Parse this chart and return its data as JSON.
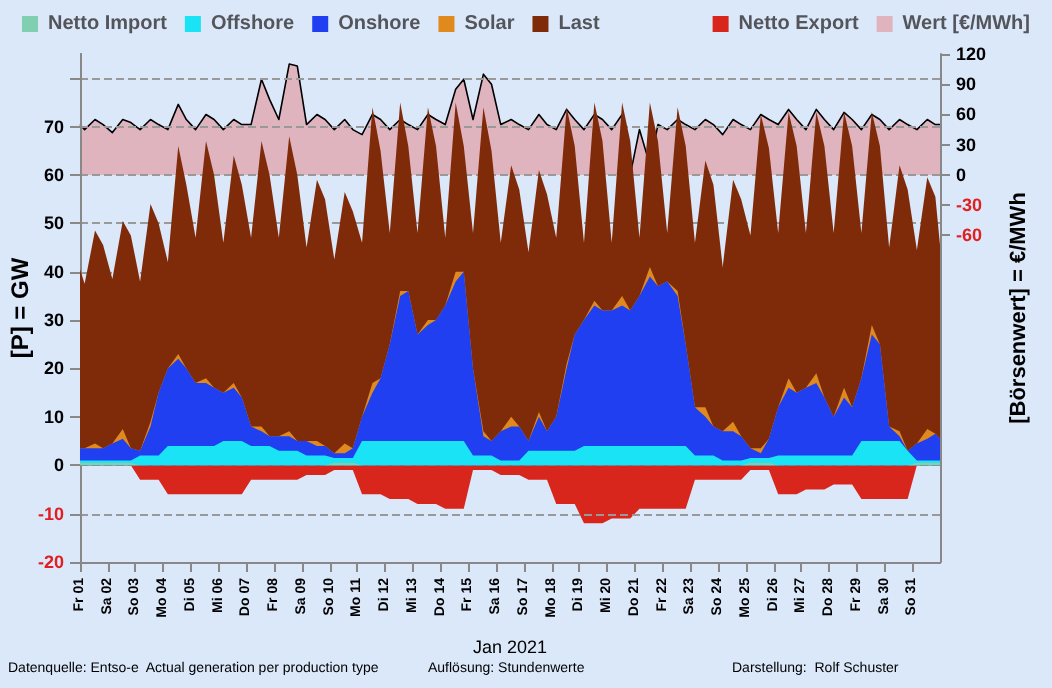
{
  "chart_data": [
    {
      "type": "area",
      "stacked": true,
      "xlabel": "Jan 2021",
      "ylabel": "[P] = GW",
      "legend": "top left",
      "grid": "y",
      "tick_labels": "x",
      "annotations": [
        "Datenquelle: Entso-e  Actual generation per production type",
        "Auflösung: Stundenwerte",
        "Darstellung:  Rolf Schuster"
      ],
      "xlim": [
        "2021-01-01",
        "2021-02-01"
      ],
      "xticks": [
        {
          "value": "2021-01-01",
          "label": "Fr 01"
        },
        {
          "value": "2021-01-02",
          "label": "Sa 02"
        },
        {
          "value": "2021-01-03",
          "label": "So 03"
        },
        {
          "value": "2021-01-04",
          "label": "Mo 04"
        },
        {
          "value": "2021-01-05",
          "label": "Di 05"
        },
        {
          "value": "2021-01-06",
          "label": "Mi 06"
        },
        {
          "value": "2021-01-07",
          "label": "Do 07"
        },
        {
          "value": "2021-01-08",
          "label": "Fr 08"
        },
        {
          "value": "2021-01-09",
          "label": "Sa 09"
        },
        {
          "value": "2021-01-10",
          "label": "So 10"
        },
        {
          "value": "2021-01-11",
          "label": "Mo 11"
        },
        {
          "value": "2021-01-12",
          "label": "Di 12"
        },
        {
          "value": "2021-01-13",
          "label": "Mi 13"
        },
        {
          "value": "2021-01-14",
          "label": "Do 14"
        },
        {
          "value": "2021-01-15",
          "label": "Fr 15"
        },
        {
          "value": "2021-01-16",
          "label": "Sa 16"
        },
        {
          "value": "2021-01-17",
          "label": "So 17"
        },
        {
          "value": "2021-01-18",
          "label": "Mo 18"
        },
        {
          "value": "2021-01-19",
          "label": "Di 19"
        },
        {
          "value": "2021-01-20",
          "label": "Mi 20"
        },
        {
          "value": "2021-01-21",
          "label": "Do 21"
        },
        {
          "value": "2021-01-22",
          "label": "Fr 22"
        },
        {
          "value": "2021-01-23",
          "label": "Sa 23"
        },
        {
          "value": "2021-01-24",
          "label": "So 24"
        },
        {
          "value": "2021-01-25",
          "label": "Mo 25"
        },
        {
          "value": "2021-01-26",
          "label": "Di 26"
        },
        {
          "value": "2021-01-27",
          "label": "Mi 27"
        },
        {
          "value": "2021-01-28",
          "label": "Do 28"
        },
        {
          "value": "2021-01-29",
          "label": "Fr 29"
        },
        {
          "value": "2021-01-30",
          "label": "Sa 30"
        },
        {
          "value": "2021-01-31",
          "label": "So 31"
        }
      ],
      "ylim": [
        -20,
        85
      ],
      "yticks": [
        -20,
        -10,
        0,
        10,
        20,
        30,
        40,
        50,
        60,
        70,
        {
          "value": 80,
          "label": null
        }
      ],
      "x": [
        "2021-01-01T00:00",
        "2021-01-01T04:00",
        "2021-01-01T13:00",
        "2021-01-01T20:00",
        "2021-01-02T04:00",
        "2021-01-02T13:00",
        "2021-01-02T20:00",
        "2021-01-03T04:00",
        "2021-01-03T13:00",
        "2021-01-03T20:00",
        "2021-01-04T04:00",
        "2021-01-04T13:00",
        "2021-01-04T20:00",
        "2021-01-05T04:00",
        "2021-01-05T13:00",
        "2021-01-05T20:00",
        "2021-01-06T04:00",
        "2021-01-06T13:00",
        "2021-01-06T20:00",
        "2021-01-07T04:00",
        "2021-01-07T13:00",
        "2021-01-07T20:00",
        "2021-01-08T04:00",
        "2021-01-08T13:00",
        "2021-01-08T20:00",
        "2021-01-09T04:00",
        "2021-01-09T13:00",
        "2021-01-09T20:00",
        "2021-01-10T04:00",
        "2021-01-10T13:00",
        "2021-01-10T20:00",
        "2021-01-11T04:00",
        "2021-01-11T13:00",
        "2021-01-11T20:00",
        "2021-01-12T04:00",
        "2021-01-12T13:00",
        "2021-01-12T20:00",
        "2021-01-13T04:00",
        "2021-01-13T13:00",
        "2021-01-13T20:00",
        "2021-01-14T04:00",
        "2021-01-14T13:00",
        "2021-01-14T20:00",
        "2021-01-15T04:00",
        "2021-01-15T13:00",
        "2021-01-15T20:00",
        "2021-01-16T04:00",
        "2021-01-16T13:00",
        "2021-01-16T20:00",
        "2021-01-17T04:00",
        "2021-01-17T13:00",
        "2021-01-17T20:00",
        "2021-01-18T04:00",
        "2021-01-18T13:00",
        "2021-01-18T20:00",
        "2021-01-19T04:00",
        "2021-01-19T13:00",
        "2021-01-19T20:00",
        "2021-01-20T04:00",
        "2021-01-20T13:00",
        "2021-01-20T20:00",
        "2021-01-21T04:00",
        "2021-01-21T13:00",
        "2021-01-21T20:00",
        "2021-01-22T04:00",
        "2021-01-22T13:00",
        "2021-01-22T20:00",
        "2021-01-23T04:00",
        "2021-01-23T13:00",
        "2021-01-23T20:00",
        "2021-01-24T04:00",
        "2021-01-24T13:00",
        "2021-01-24T20:00",
        "2021-01-25T04:00",
        "2021-01-25T13:00",
        "2021-01-25T20:00",
        "2021-01-26T04:00",
        "2021-01-26T13:00",
        "2021-01-26T20:00",
        "2021-01-27T04:00",
        "2021-01-27T13:00",
        "2021-01-27T20:00",
        "2021-01-28T04:00",
        "2021-01-28T13:00",
        "2021-01-28T20:00",
        "2021-01-29T04:00",
        "2021-01-29T13:00",
        "2021-01-29T20:00",
        "2021-01-30T04:00",
        "2021-01-30T13:00",
        "2021-01-30T20:00",
        "2021-01-31T04:00",
        "2021-01-31T13:00",
        "2021-01-31T20:00",
        "2021-02-01T00:00"
      ],
      "series": [
        {
          "name": "Netto Import",
          "color": "#7fcfb0",
          "values": [
            0.5,
            0.5,
            0.5,
            0.5,
            0.5,
            0.5,
            0.5,
            0,
            0,
            0,
            0,
            0,
            0,
            0,
            0,
            0,
            0,
            0,
            0,
            0,
            0,
            0,
            0,
            0,
            0,
            0,
            0,
            0,
            0.5,
            0.5,
            0.5,
            0,
            0,
            0,
            0,
            0,
            0,
            0,
            0,
            0,
            0,
            0,
            0,
            0,
            0,
            0,
            0,
            0,
            0,
            0,
            0,
            0,
            0,
            0,
            0,
            0,
            0,
            0,
            0,
            0,
            0,
            0,
            0,
            0,
            0,
            0,
            0,
            0,
            0,
            0,
            0,
            0,
            0,
            0.5,
            0.5,
            0.5,
            0,
            0,
            0,
            0,
            0,
            0,
            0,
            0,
            0,
            0,
            0,
            0,
            0,
            0,
            0,
            0.5,
            0.5,
            0.5,
            0.5
          ]
        },
        {
          "name": "Offshore",
          "color": "#19e3f5",
          "values": [
            0.5,
            0.5,
            0.5,
            0.5,
            0.5,
            0.5,
            0.5,
            2,
            2,
            2,
            4,
            4,
            4,
            4,
            4,
            4,
            5,
            5,
            5,
            4,
            4,
            4,
            3,
            3,
            3,
            2,
            2,
            2,
            1,
            1,
            1,
            5,
            5,
            5,
            5,
            5,
            5,
            5,
            5,
            5,
            5,
            5,
            5,
            2,
            2,
            2,
            1,
            1,
            1,
            3,
            3,
            3,
            3,
            3,
            3,
            4,
            4,
            4,
            4,
            4,
            4,
            4,
            4,
            4,
            4,
            4,
            4,
            2,
            2,
            2,
            1,
            1,
            1,
            1,
            1,
            1,
            2,
            2,
            2,
            2,
            2,
            2,
            2,
            2,
            2,
            5,
            5,
            5,
            5,
            5,
            3,
            0.5,
            0.5,
            0.5,
            0.5
          ]
        },
        {
          "name": "Onshore",
          "color": "#1f3ff0",
          "values": [
            2.5,
            2.5,
            2.5,
            2.5,
            3.5,
            4.5,
            2.5,
            1,
            6,
            13,
            16,
            18,
            16,
            13,
            13,
            12,
            10,
            11,
            9,
            4,
            3,
            2,
            3,
            3,
            2,
            3,
            2,
            2,
            1,
            1,
            2,
            5,
            10,
            13,
            20,
            30,
            31,
            22,
            24,
            25,
            28,
            33,
            35,
            18,
            4,
            3,
            6,
            7,
            7,
            2,
            7,
            4,
            7,
            17,
            24,
            26,
            29,
            28,
            28,
            29,
            28,
            31,
            35,
            33,
            34,
            31,
            21,
            10,
            8,
            6,
            6,
            6,
            5,
            2,
            1,
            4,
            10,
            14,
            13,
            14,
            15,
            12,
            8,
            12,
            10,
            13,
            22,
            20,
            3,
            1,
            0,
            3.5,
            4.5,
            5.5,
            4.5
          ]
        },
        {
          "name": "Solar",
          "color": "#e08a1e",
          "values": [
            0,
            0,
            1,
            0,
            0,
            2,
            0,
            0,
            1,
            0,
            0,
            1,
            0,
            0,
            1,
            0,
            0,
            1,
            0,
            0,
            1,
            0,
            0,
            1,
            0,
            0,
            1,
            0,
            0,
            2,
            0,
            0,
            2,
            0,
            0,
            1,
            0,
            0,
            1,
            0,
            0,
            2,
            0,
            0,
            1,
            0,
            0,
            2,
            0,
            0,
            1,
            0,
            0,
            1,
            0,
            0,
            1,
            0,
            0,
            2,
            0,
            0,
            2,
            0,
            0,
            1,
            0,
            0,
            2,
            0,
            0,
            2,
            0,
            0,
            1,
            0,
            0,
            2,
            0,
            0,
            2,
            0,
            0,
            2,
            0,
            0,
            2,
            0,
            0,
            1,
            0,
            0,
            2,
            0,
            0
          ]
        },
        {
          "name": "Last",
          "color": "#7f2b0a",
          "values": [
            37,
            34,
            44,
            42,
            34,
            43,
            44,
            35,
            45,
            35,
            22,
            43,
            38,
            30,
            49,
            44,
            31,
            47,
            44,
            39,
            59,
            54,
            41,
            61,
            55,
            40,
            54,
            51,
            40,
            52,
            49,
            36,
            57,
            47,
            23,
            39,
            30,
            21,
            44,
            36,
            14,
            35,
            26,
            28,
            67,
            60,
            39,
            52,
            49,
            39,
            50,
            49,
            37,
            53,
            39,
            16,
            41,
            35,
            14,
            40,
            35,
            12,
            34,
            30,
            10,
            38,
            41,
            34,
            51,
            50,
            34,
            50,
            49,
            44,
            69,
            60,
            36,
            55,
            51,
            32,
            54,
            52,
            38,
            57,
            54,
            30,
            44,
            41,
            37,
            55,
            54,
            40,
            52,
            49,
            40
          ]
        }
      ]
    },
    {
      "type": "area",
      "legend": "top right",
      "tick_labels": "y",
      "y2label": "[Börsenwert] = €/MWh",
      "xlim": [
        "2021-01-01",
        "2021-02-01"
      ],
      "ylim": [
        -20,
        85
      ],
      "yticks": [
        -20,
        -10,
        0,
        10,
        20,
        30,
        40,
        50,
        60,
        70,
        {
          "value": 80,
          "label": null
        }
      ],
      "y2lim": [
        -384,
        120
      ],
      "y2ticks": [
        -60,
        -30,
        0,
        30,
        60,
        90,
        120
      ],
      "x": [
        "2021-01-01T00:00",
        "2021-01-01T04:00",
        "2021-01-01T13:00",
        "2021-01-01T20:00",
        "2021-01-02T04:00",
        "2021-01-02T13:00",
        "2021-01-02T20:00",
        "2021-01-03T04:00",
        "2021-01-03T13:00",
        "2021-01-03T20:00",
        "2021-01-04T04:00",
        "2021-01-04T13:00",
        "2021-01-04T20:00",
        "2021-01-05T04:00",
        "2021-01-05T13:00",
        "2021-01-05T20:00",
        "2021-01-06T04:00",
        "2021-01-06T13:00",
        "2021-01-06T20:00",
        "2021-01-07T04:00",
        "2021-01-07T13:00",
        "2021-01-07T20:00",
        "2021-01-08T04:00",
        "2021-01-08T13:00",
        "2021-01-08T20:00",
        "2021-01-09T04:00",
        "2021-01-09T13:00",
        "2021-01-09T20:00",
        "2021-01-10T04:00",
        "2021-01-10T13:00",
        "2021-01-10T20:00",
        "2021-01-11T04:00",
        "2021-01-11T13:00",
        "2021-01-11T20:00",
        "2021-01-12T04:00",
        "2021-01-12T13:00",
        "2021-01-12T20:00",
        "2021-01-13T04:00",
        "2021-01-13T13:00",
        "2021-01-13T20:00",
        "2021-01-14T04:00",
        "2021-01-14T13:00",
        "2021-01-14T20:00",
        "2021-01-15T04:00",
        "2021-01-15T13:00",
        "2021-01-15T20:00",
        "2021-01-16T04:00",
        "2021-01-16T13:00",
        "2021-01-16T20:00",
        "2021-01-17T04:00",
        "2021-01-17T13:00",
        "2021-01-17T20:00",
        "2021-01-18T04:00",
        "2021-01-18T13:00",
        "2021-01-18T20:00",
        "2021-01-19T04:00",
        "2021-01-19T13:00",
        "2021-01-19T20:00",
        "2021-01-20T04:00",
        "2021-01-20T13:00",
        "2021-01-20T20:00",
        "2021-01-21T04:00",
        "2021-01-21T13:00",
        "2021-01-21T20:00",
        "2021-01-22T04:00",
        "2021-01-22T13:00",
        "2021-01-22T20:00",
        "2021-01-23T04:00",
        "2021-01-23T13:00",
        "2021-01-23T20:00",
        "2021-01-24T04:00",
        "2021-01-24T13:00",
        "2021-01-24T20:00",
        "2021-01-25T04:00",
        "2021-01-25T13:00",
        "2021-01-25T20:00",
        "2021-01-26T04:00",
        "2021-01-26T13:00",
        "2021-01-26T20:00",
        "2021-01-27T04:00",
        "2021-01-27T13:00",
        "2021-01-27T20:00",
        "2021-01-28T04:00",
        "2021-01-28T13:00",
        "2021-01-28T20:00",
        "2021-01-29T04:00",
        "2021-01-29T13:00",
        "2021-01-29T20:00",
        "2021-01-30T04:00",
        "2021-01-30T13:00",
        "2021-01-30T20:00",
        "2021-01-31T04:00",
        "2021-01-31T13:00",
        "2021-01-31T20:00",
        "2021-02-01T00:00"
      ],
      "series": [
        {
          "name": "Netto Export",
          "color": "#d9261c",
          "values": [
            0,
            0,
            0,
            0,
            0,
            0,
            0,
            -3,
            -3,
            -3,
            -6,
            -6,
            -6,
            -6,
            -6,
            -6,
            -6,
            -6,
            -6,
            -3,
            -3,
            -3,
            -3,
            -3,
            -3,
            -2,
            -2,
            -2,
            -1,
            -1,
            -1,
            -6,
            -6,
            -6,
            -7,
            -7,
            -7,
            -8,
            -8,
            -8,
            -9,
            -9,
            -9,
            -1,
            -1,
            -1,
            -2,
            -2,
            -2,
            -3,
            -3,
            -3,
            -8,
            -8,
            -8,
            -12,
            -12,
            -12,
            -11,
            -11,
            -11,
            -9,
            -9,
            -9,
            -9,
            -9,
            -9,
            -3,
            -3,
            -3,
            -3,
            -3,
            -3,
            -1,
            -1,
            -1,
            -6,
            -6,
            -6,
            -5,
            -5,
            -5,
            -4,
            -4,
            -4,
            -7,
            -7,
            -7,
            -7,
            -7,
            -7,
            0,
            0,
            0,
            0
          ]
        },
        {
          "name": "Wert [€/MWh]",
          "axis": "y2",
          "color": "#e0b4be",
          "values": [
            50,
            45,
            55,
            50,
            42,
            55,
            52,
            45,
            55,
            50,
            45,
            70,
            55,
            45,
            60,
            55,
            45,
            55,
            50,
            50,
            95,
            75,
            55,
            110,
            108,
            50,
            60,
            55,
            45,
            55,
            45,
            40,
            60,
            55,
            45,
            55,
            50,
            45,
            60,
            55,
            50,
            85,
            95,
            55,
            100,
            90,
            50,
            55,
            50,
            45,
            60,
            50,
            45,
            65,
            55,
            45,
            60,
            55,
            45,
            60,
            0,
            45,
            10,
            50,
            45,
            55,
            50,
            45,
            55,
            50,
            40,
            55,
            50,
            45,
            60,
            55,
            50,
            65,
            55,
            45,
            65,
            55,
            45,
            62,
            55,
            45,
            60,
            55,
            45,
            55,
            50,
            45,
            55,
            50,
            50
          ]
        }
      ]
    }
  ]
}
